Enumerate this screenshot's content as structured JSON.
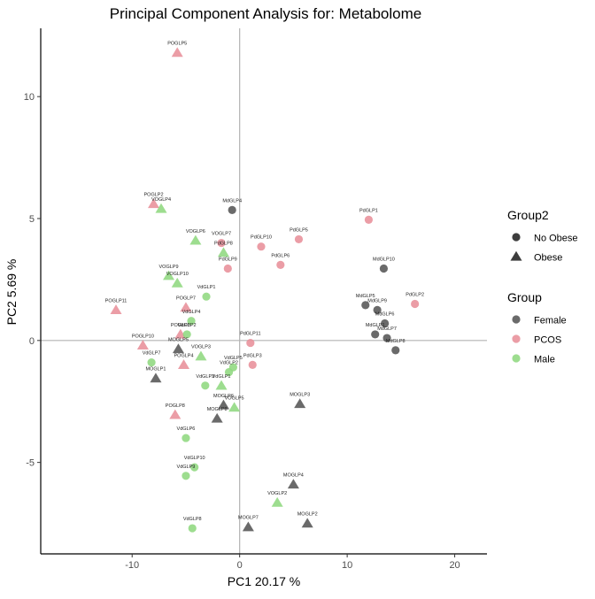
{
  "chart_data": {
    "type": "scatter",
    "title": "Principal Component Analysis for:  Metabolome",
    "xlabel": "PC1 20.17 %",
    "ylabel": "PC2 5.69 %",
    "xlim": [
      -18.5,
      23
    ],
    "ylim": [
      -8.75,
      12.8
    ],
    "xticks": [
      -10,
      0,
      10,
      20
    ],
    "xtick_labels": [
      "-10",
      "0",
      "10",
      "20"
    ],
    "yticks": [
      -5,
      0,
      5,
      10
    ],
    "ytick_labels": [
      "-5",
      "0",
      "5",
      "10"
    ],
    "reference_lines": {
      "x": 0,
      "y": 0
    },
    "grid": false,
    "legend_position": "right",
    "legends": [
      {
        "title": "Group2",
        "kind": "shape",
        "entries": [
          {
            "label": "No Obese",
            "shape": "circle"
          },
          {
            "label": "Obese",
            "shape": "triangle"
          }
        ]
      },
      {
        "title": "Group",
        "kind": "color",
        "entries": [
          {
            "label": "Female",
            "color": "#555555"
          },
          {
            "label": "PCOS",
            "color": "#e8909a"
          },
          {
            "label": "Male",
            "color": "#90d880"
          }
        ]
      }
    ],
    "points": [
      {
        "label": "POGLP5",
        "x": -5.8,
        "y": 11.8,
        "group": "PCOS",
        "group2": "Obese"
      },
      {
        "label": "POGLP2",
        "x": -8.0,
        "y": 5.6,
        "group": "PCOS",
        "group2": "Obese"
      },
      {
        "label": "VOGLP4",
        "x": -7.3,
        "y": 5.4,
        "group": "Male",
        "group2": "Obese"
      },
      {
        "label": "MdGLP4",
        "x": -0.7,
        "y": 5.35,
        "group": "Female",
        "group2": "No Obese"
      },
      {
        "label": "PdGLP1",
        "x": 12.0,
        "y": 4.95,
        "group": "PCOS",
        "group2": "No Obese"
      },
      {
        "label": "VOGLP6",
        "x": -4.1,
        "y": 4.1,
        "group": "Male",
        "group2": "Obese"
      },
      {
        "label": "VOGLP7",
        "x": -1.7,
        "y": 4.0,
        "group": "PCOS",
        "group2": "No Obese"
      },
      {
        "label": "PdGLP5",
        "x": 5.5,
        "y": 4.15,
        "group": "PCOS",
        "group2": "No Obese"
      },
      {
        "label": "PdGLP10",
        "x": 2.0,
        "y": 3.85,
        "group": "PCOS",
        "group2": "No Obese"
      },
      {
        "label": "PdGLP8",
        "x": -1.5,
        "y": 3.6,
        "group": "Male",
        "group2": "Obese"
      },
      {
        "label": "PdGLP6",
        "x": 3.8,
        "y": 3.1,
        "group": "PCOS",
        "group2": "No Obese"
      },
      {
        "label": "PdGLP9",
        "x": -1.1,
        "y": 2.95,
        "group": "PCOS",
        "group2": "No Obese"
      },
      {
        "label": "MdGLP10",
        "x": 13.4,
        "y": 2.95,
        "group": "Female",
        "group2": "No Obese"
      },
      {
        "label": "VOGLP9",
        "x": -6.6,
        "y": 2.65,
        "group": "Male",
        "group2": "Obese"
      },
      {
        "label": "VOGLP10",
        "x": -5.8,
        "y": 2.35,
        "group": "Male",
        "group2": "Obese"
      },
      {
        "label": "VdGLP1",
        "x": -3.1,
        "y": 1.8,
        "group": "Male",
        "group2": "No Obese"
      },
      {
        "label": "POGLP11",
        "x": -11.5,
        "y": 1.25,
        "group": "PCOS",
        "group2": "Obese"
      },
      {
        "label": "POGLP7",
        "x": -5.0,
        "y": 1.35,
        "group": "PCOS",
        "group2": "Obese"
      },
      {
        "label": "PdGLP2",
        "x": 16.3,
        "y": 1.5,
        "group": "PCOS",
        "group2": "No Obese"
      },
      {
        "label": "MdGLP5",
        "x": 11.7,
        "y": 1.45,
        "group": "Female",
        "group2": "No Obese"
      },
      {
        "label": "MdGLP9",
        "x": 12.8,
        "y": 1.25,
        "group": "Female",
        "group2": "No Obese"
      },
      {
        "label": "VdGLP4",
        "x": -4.5,
        "y": 0.8,
        "group": "Male",
        "group2": "No Obese"
      },
      {
        "label": "MdGLP6",
        "x": 13.5,
        "y": 0.7,
        "group": "Female",
        "group2": "No Obese"
      },
      {
        "label": "POGLP3",
        "x": -5.5,
        "y": 0.25,
        "group": "PCOS",
        "group2": "Obese"
      },
      {
        "label": "VdGLP2",
        "x": -4.9,
        "y": 0.25,
        "group": "Male",
        "group2": "No Obese"
      },
      {
        "label": "MdGLP1",
        "x": 12.6,
        "y": 0.25,
        "group": "Female",
        "group2": "No Obese"
      },
      {
        "label": "MdGLP7",
        "x": 13.7,
        "y": 0.1,
        "group": "Female",
        "group2": "No Obese"
      },
      {
        "label": "PdGLP11",
        "x": 1.0,
        "y": -0.1,
        "group": "PCOS",
        "group2": "No Obese"
      },
      {
        "label": "POGLP10",
        "x": -9.0,
        "y": -0.2,
        "group": "PCOS",
        "group2": "Obese"
      },
      {
        "label": "MOGLP5",
        "x": -5.7,
        "y": -0.35,
        "group": "Female",
        "group2": "Obese"
      },
      {
        "label": "MdGLP8",
        "x": 14.5,
        "y": -0.4,
        "group": "Female",
        "group2": "No Obese"
      },
      {
        "label": "VOGLP3",
        "x": -3.6,
        "y": -0.65,
        "group": "Male",
        "group2": "Obese"
      },
      {
        "label": "VdGLP7",
        "x": -8.2,
        "y": -0.9,
        "group": "Male",
        "group2": "No Obese"
      },
      {
        "label": "POGLP4",
        "x": -5.2,
        "y": -1.0,
        "group": "PCOS",
        "group2": "Obese"
      },
      {
        "label": "VdGLP5",
        "x": -0.6,
        "y": -1.1,
        "group": "Male",
        "group2": "No Obese"
      },
      {
        "label": "PdGLP3",
        "x": 1.2,
        "y": -1.0,
        "group": "PCOS",
        "group2": "No Obese"
      },
      {
        "label": "VdGLP2",
        "x": -1.0,
        "y": -1.3,
        "group": "Male",
        "group2": "No Obese"
      },
      {
        "label": "MOGLP1",
        "x": -7.8,
        "y": -1.55,
        "group": "Female",
        "group2": "Obese"
      },
      {
        "label": "VdGLP3",
        "x": -3.2,
        "y": -1.85,
        "group": "Male",
        "group2": "No Obese"
      },
      {
        "label": "VdGLP1",
        "x": -1.7,
        "y": -1.85,
        "group": "Male",
        "group2": "Obese"
      },
      {
        "label": "MOGLP6",
        "x": -1.5,
        "y": -2.65,
        "group": "Female",
        "group2": "Obese"
      },
      {
        "label": "VOGLP5",
        "x": -0.5,
        "y": -2.75,
        "group": "Male",
        "group2": "Obese"
      },
      {
        "label": "MOGLP3",
        "x": 5.6,
        "y": -2.6,
        "group": "Female",
        "group2": "Obese"
      },
      {
        "label": "POGLP8",
        "x": -6.0,
        "y": -3.05,
        "group": "PCOS",
        "group2": "Obese"
      },
      {
        "label": "MOGLP8",
        "x": -2.1,
        "y": -3.2,
        "group": "Female",
        "group2": "Obese"
      },
      {
        "label": "VdGLP6",
        "x": -5.0,
        "y": -4.0,
        "group": "Male",
        "group2": "No Obese"
      },
      {
        "label": "VdGLP10",
        "x": -4.2,
        "y": -5.2,
        "group": "Male",
        "group2": "No Obese"
      },
      {
        "label": "VdGLP9",
        "x": -5.0,
        "y": -5.55,
        "group": "Male",
        "group2": "No Obese"
      },
      {
        "label": "MOGLP4",
        "x": 5.0,
        "y": -5.9,
        "group": "Female",
        "group2": "Obese"
      },
      {
        "label": "VOGLP2",
        "x": 3.5,
        "y": -6.65,
        "group": "Male",
        "group2": "Obese"
      },
      {
        "label": "MOGLP2",
        "x": 6.3,
        "y": -7.5,
        "group": "Female",
        "group2": "Obese"
      },
      {
        "label": "VdGLP8",
        "x": -4.4,
        "y": -7.7,
        "group": "Male",
        "group2": "No Obese"
      },
      {
        "label": "MOGLP7",
        "x": 0.8,
        "y": -7.65,
        "group": "Female",
        "group2": "Obese"
      }
    ]
  }
}
